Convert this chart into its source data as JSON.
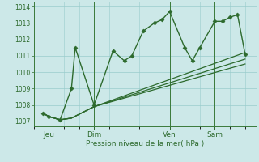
{
  "background_color": "#cce8e8",
  "grid_color": "#99cccc",
  "line_color": "#2d6a2d",
  "marker_color": "#2d6a2d",
  "ylabel_ticks": [
    1007,
    1008,
    1009,
    1010,
    1011,
    1012,
    1013,
    1014
  ],
  "ylim": [
    1006.7,
    1014.3
  ],
  "xlabel": "Pression niveau de la mer( hPa )",
  "day_labels": [
    "Jeu",
    "Dim",
    "Ven",
    "Sam"
  ],
  "day_positions": [
    8,
    32,
    72,
    96
  ],
  "vline_positions": [
    8,
    32,
    72,
    96
  ],
  "series_main": {
    "x": [
      5,
      8,
      14,
      20,
      22,
      32,
      42,
      48,
      52,
      58,
      64,
      68,
      72,
      80,
      84,
      88,
      96,
      100,
      104,
      108,
      112
    ],
    "y": [
      1007.5,
      1007.3,
      1007.1,
      1009.0,
      1011.5,
      1008.0,
      1011.3,
      1010.7,
      1011.0,
      1012.5,
      1013.0,
      1013.2,
      1013.7,
      1011.5,
      1010.7,
      1011.5,
      1013.1,
      1013.1,
      1013.35,
      1013.5,
      1011.1
    ],
    "marker": "D",
    "markersize": 2.5,
    "linewidth": 1.0
  },
  "series_flat": [
    {
      "x": [
        5,
        8,
        14,
        20,
        32,
        112
      ],
      "y": [
        1007.5,
        1007.3,
        1007.1,
        1007.2,
        1007.9,
        1011.2
      ]
    },
    {
      "x": [
        5,
        8,
        14,
        20,
        32,
        112
      ],
      "y": [
        1007.5,
        1007.3,
        1007.1,
        1007.2,
        1007.9,
        1010.8
      ]
    },
    {
      "x": [
        5,
        8,
        14,
        20,
        32,
        112
      ],
      "y": [
        1007.5,
        1007.3,
        1007.1,
        1007.2,
        1007.9,
        1010.5
      ]
    }
  ],
  "xlim": [
    0,
    118
  ],
  "figsize": [
    3.2,
    2.0
  ],
  "dpi": 100
}
